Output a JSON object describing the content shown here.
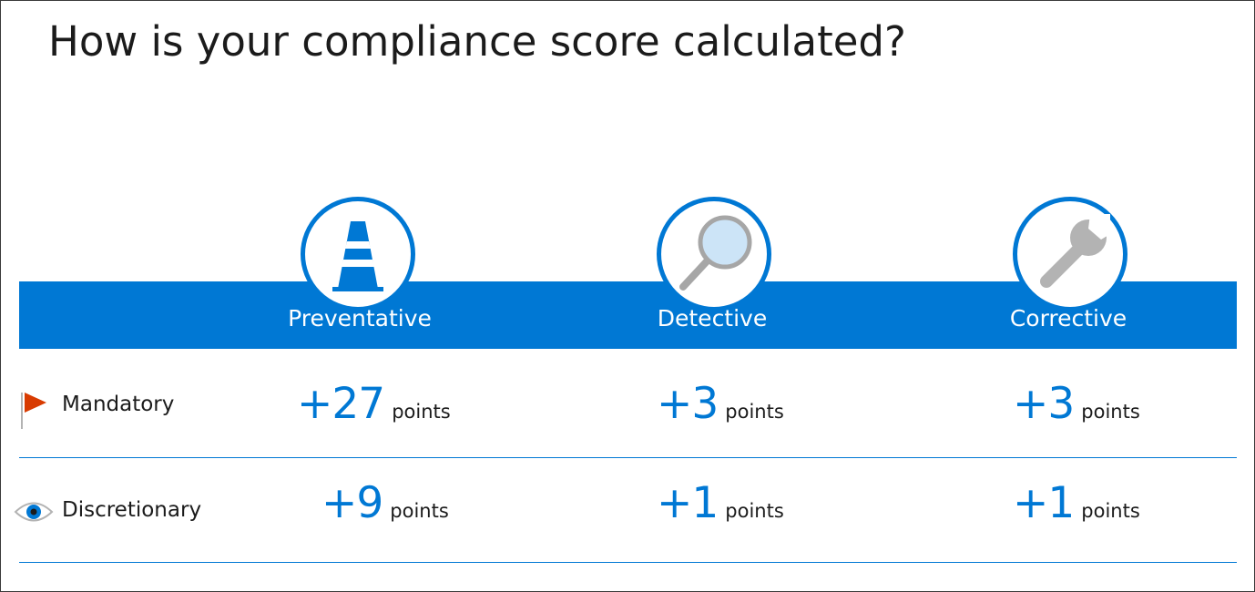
{
  "title": "How is your compliance score calculated?",
  "categories": [
    {
      "label": "Preventative",
      "icon": "traffic-cone-icon"
    },
    {
      "label": "Detective",
      "icon": "magnifying-glass-icon"
    },
    {
      "label": "Corrective",
      "icon": "wrench-icon"
    }
  ],
  "rows": [
    {
      "label": "Mandatory",
      "icon": "flag-icon",
      "scores": [
        {
          "value": "+27",
          "unit": "points"
        },
        {
          "value": "+3",
          "unit": "points"
        },
        {
          "value": "+3",
          "unit": "points"
        }
      ]
    },
    {
      "label": "Discretionary",
      "icon": "eye-icon",
      "scores": [
        {
          "value": "+9",
          "unit": "points"
        },
        {
          "value": "+1",
          "unit": "points"
        },
        {
          "value": "+1",
          "unit": "points"
        }
      ]
    }
  ],
  "colors": {
    "accent": "#0078d4",
    "flag": "#d83b01",
    "icon_gray": "#b3b3b3",
    "lens_fill": "#cce4f7"
  }
}
